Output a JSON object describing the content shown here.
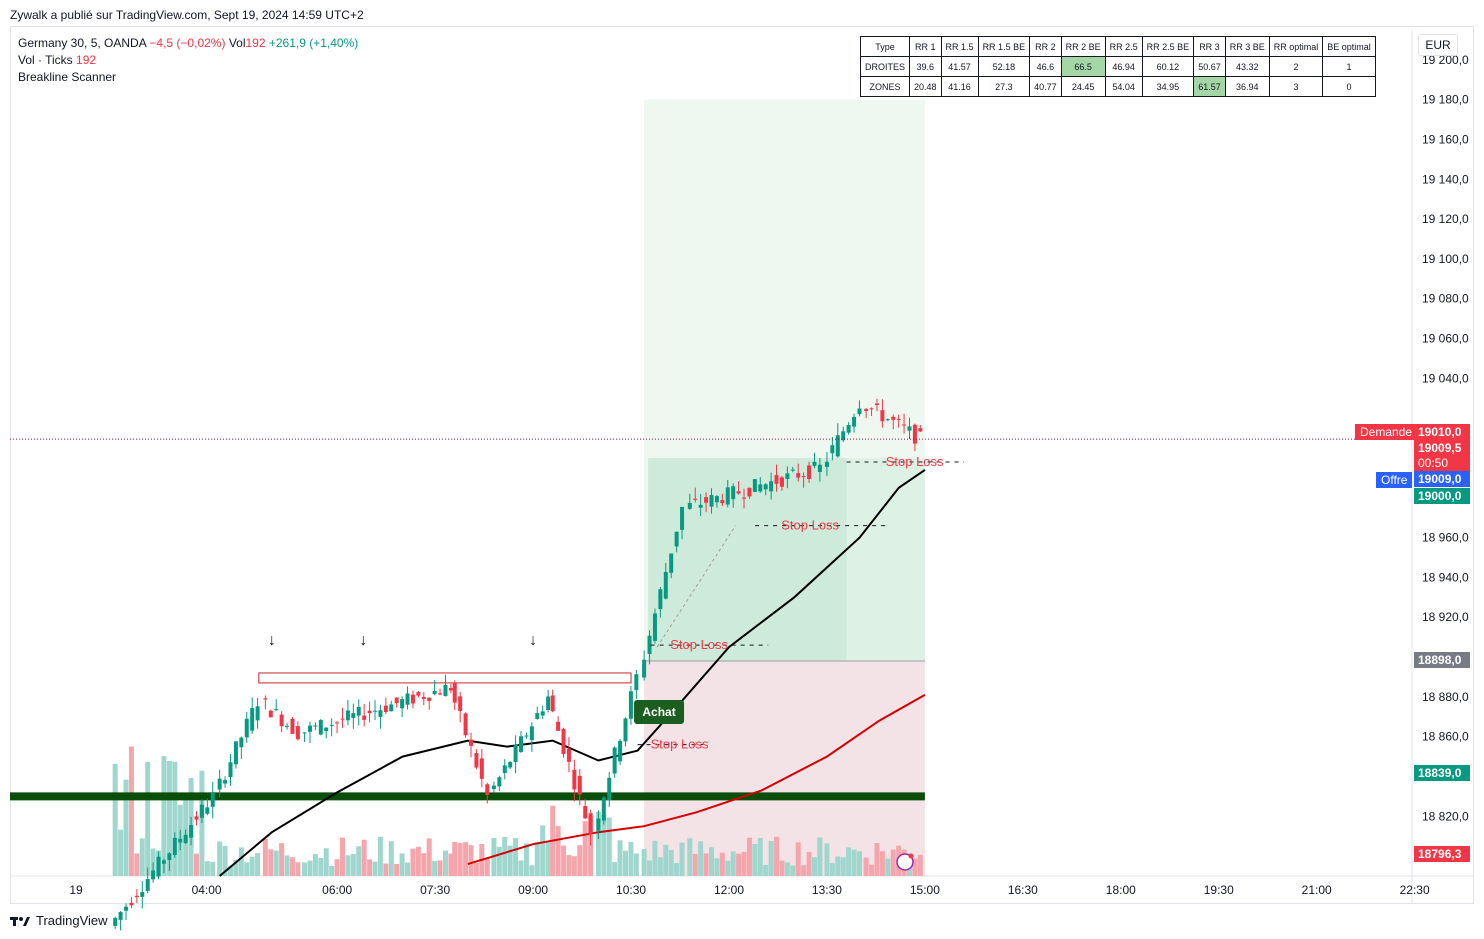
{
  "header": {
    "publisher": "Zywalk a publié sur TradingView.com, Sept 19, 2024 14:59 UTC+2"
  },
  "legend": {
    "symbol": "Germany 30, 5, OANDA",
    "change": "−4,5 (−0,02%)",
    "vol_label": "Vol",
    "vol_value": "192",
    "vol_change": "+261,9 (+1,40%)",
    "ticks_label": "Vol · Ticks",
    "ticks_value": "192",
    "indicator": "Breakline Scanner"
  },
  "stats_table": {
    "headers": [
      "Type",
      "RR 1",
      "RR 1.5",
      "RR 1.5 BE",
      "RR 2",
      "RR 2 BE",
      "RR 2.5",
      "RR 2.5 BE",
      "RR 3",
      "RR 3 BE",
      "RR optimal",
      "BE optimal"
    ],
    "rows": [
      [
        "DROITES",
        "39.6",
        "41.57",
        "52.18",
        "46.6",
        "66.5",
        "46.94",
        "60.12",
        "50.67",
        "43.32",
        "2",
        "1"
      ],
      [
        "ZONES",
        "20.48",
        "41.16",
        "27.3",
        "40.77",
        "24.45",
        "54.04",
        "34.95",
        "61.57",
        "36.94",
        "3",
        "0"
      ]
    ],
    "highlight": [
      [
        0,
        5
      ],
      [
        1,
        8
      ]
    ]
  },
  "currency": "EUR",
  "price_labels": {
    "demande_label": "Demande",
    "demande_value": "19010,0",
    "last_value": "19009,5",
    "countdown": "00:50",
    "offre_label": "Offre",
    "offre_value": "19009,0",
    "green_a": "19000,0",
    "gray": "18898,0",
    "green_b": "18839,0",
    "red": "18796,3"
  },
  "annotations": {
    "achat": "Achat",
    "stop_loss": "Stop Loss"
  },
  "branding": {
    "logo_text": "TradingView"
  },
  "colors": {
    "up": "#089981",
    "down": "#f23645",
    "ma_black": "#000000",
    "ma_red": "#d50000",
    "support": "#0b4d0b",
    "profit_zone": "#e8f5e9",
    "loss_zone": "#f4e3e6"
  },
  "chart_data": {
    "type": "candlestick",
    "symbol": "Germany 30, 5, OANDA",
    "y_ticks": [
      19200,
      19180,
      19160,
      19140,
      19120,
      19100,
      19080,
      19060,
      19040,
      18960,
      18940,
      18920,
      18880,
      18860,
      18820
    ],
    "y_tick_labels": [
      "19 200,0",
      "19 180,0",
      "19 160,0",
      "19 140,0",
      "19 120,0",
      "19 100,0",
      "19 080,0",
      "19 060,0",
      "19 040,0",
      "18 960,0",
      "18 940,0",
      "18 920,0",
      "18 880,0",
      "18 860,0",
      "18 820,0"
    ],
    "x_tick_labels": [
      "19",
      "04:00",
      "06:00",
      "07:30",
      "09:00",
      "10:30",
      "12:00",
      "13:30",
      "15:00",
      "16:30",
      "18:00",
      "19:30",
      "21:00",
      "22:30"
    ],
    "ylim": [
      18790,
      19215
    ],
    "last_price": 19009.5,
    "support_level": 18830,
    "breakout_range": [
      18887,
      18892
    ],
    "entry": 18898,
    "stop": 18839,
    "target": 19000,
    "segments": [
      {
        "from_hour": 2.6,
        "to_hour": 4.2,
        "start": 18765,
        "end": 18830,
        "step": 0.083
      },
      {
        "from_hour": 4.2,
        "to_hour": 4.9,
        "start": 18830,
        "end": 18878,
        "step": 0.083
      },
      {
        "from_hour": 4.9,
        "to_hour": 5.5,
        "start": 18878,
        "end": 18862,
        "step": 0.083
      },
      {
        "from_hour": 5.5,
        "to_hour": 7.8,
        "start": 18862,
        "end": 18885,
        "step": 0.083
      },
      {
        "from_hour": 7.8,
        "to_hour": 8.4,
        "start": 18885,
        "end": 18830,
        "step": 0.083
      },
      {
        "from_hour": 8.4,
        "to_hour": 9.3,
        "start": 18830,
        "end": 18880,
        "step": 0.083
      },
      {
        "from_hour": 9.3,
        "to_hour": 10.0,
        "start": 18880,
        "end": 18812,
        "step": 0.083
      },
      {
        "from_hour": 10.0,
        "to_hour": 10.7,
        "start": 18812,
        "end": 18890,
        "step": 0.083
      },
      {
        "from_hour": 10.7,
        "to_hour": 11.4,
        "start": 18890,
        "end": 18975,
        "step": 0.083
      },
      {
        "from_hour": 11.4,
        "to_hour": 13.5,
        "start": 18975,
        "end": 18995,
        "step": 0.083
      },
      {
        "from_hour": 13.5,
        "to_hour": 14.1,
        "start": 18995,
        "end": 19028,
        "step": 0.083
      },
      {
        "from_hour": 14.1,
        "to_hour": 15.0,
        "start": 19028,
        "end": 19009.5,
        "step": 0.083
      }
    ]
  }
}
